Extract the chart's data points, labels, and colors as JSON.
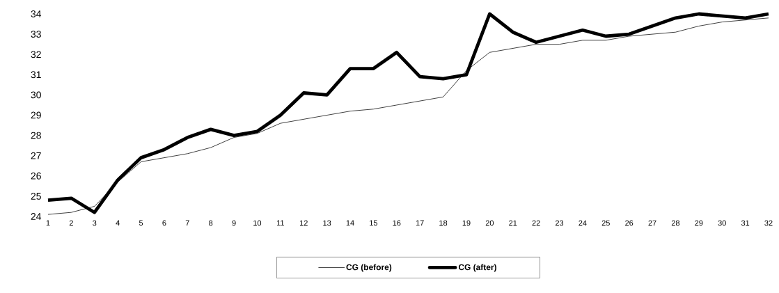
{
  "chart_data": {
    "type": "line",
    "categories": [
      "1",
      "2",
      "3",
      "4",
      "5",
      "6",
      "7",
      "8",
      "9",
      "10",
      "11",
      "12",
      "13",
      "14",
      "15",
      "16",
      "17",
      "18",
      "19",
      "20",
      "21",
      "22",
      "23",
      "24",
      "25",
      "26",
      "27",
      "28",
      "29",
      "30",
      "31",
      "32"
    ],
    "series": [
      {
        "name": "CG (before)",
        "color": "#000000",
        "values": [
          24.1,
          24.2,
          24.5,
          25.7,
          26.7,
          26.9,
          27.1,
          27.4,
          27.9,
          28.1,
          28.6,
          28.8,
          29.0,
          29.2,
          29.3,
          29.5,
          29.7,
          29.9,
          31.2,
          32.1,
          32.3,
          32.5,
          32.5,
          32.7,
          32.7,
          32.9,
          33.0,
          33.1,
          33.4,
          33.6,
          33.7,
          33.8
        ]
      },
      {
        "name": "CG (after)",
        "color": "#000000",
        "values": [
          24.8,
          24.9,
          24.2,
          25.8,
          26.9,
          27.3,
          27.9,
          28.3,
          28.0,
          28.2,
          29.0,
          30.1,
          30.0,
          31.3,
          31.3,
          32.1,
          30.9,
          30.8,
          31.0,
          34.0,
          33.1,
          32.6,
          32.9,
          33.2,
          32.9,
          33.0,
          33.4,
          33.8,
          34.0,
          33.9,
          33.8,
          34.0
        ]
      }
    ],
    "ylim": [
      24,
      34
    ],
    "yticks": [
      24,
      25,
      26,
      27,
      28,
      29,
      30,
      31,
      32,
      33,
      34
    ],
    "legend": "bottom"
  }
}
